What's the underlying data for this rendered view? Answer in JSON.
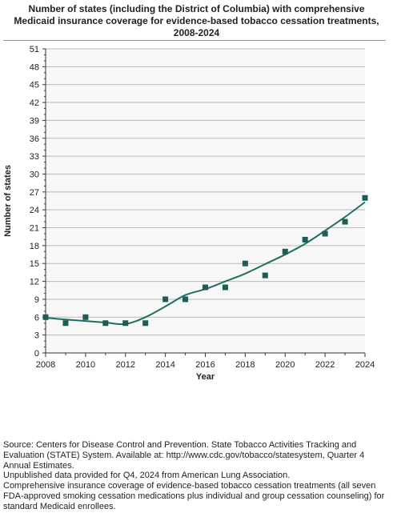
{
  "title_lines": [
    "Number of states (including the District of Columbia) with comprehensive",
    "Medicaid insurance coverage for evidence-based tobacco cessation treatments,",
    "2008-2024"
  ],
  "footnotes": [
    "Source: Centers for Disease Control and Prevention. State Tobacco Activities Tracking and Evaluation (STATE) System. Available at: http://www.cdc.gov/tobacco/statesystem, Quarter 4 Annual Estimates.",
    "Unpublished data provided for Q4, 2024 from American Lung Association.",
    "Comprehensive insurance coverage of evidence-based tobacco cessation treatments (all seven FDA-approved smoking cessation medications plus individual and group cessation counseling) for standard Medicaid enrollees."
  ],
  "colors": {
    "marker": "#1f5c55",
    "trend": "#1f6f63",
    "grid": "#b9b9b9",
    "plot_bg": "#f7f7f7"
  },
  "chart_data": {
    "type": "scatter",
    "title": "Number of states (including the District of Columbia) with comprehensive Medicaid insurance coverage for evidence-based tobacco cessation treatments, 2008-2024",
    "xlabel": "Year",
    "ylabel": "Number of states",
    "xlim": [
      2008,
      2024
    ],
    "ylim": [
      0,
      51
    ],
    "x_ticks": [
      2008,
      2010,
      2012,
      2014,
      2016,
      2018,
      2020,
      2022,
      2024
    ],
    "y_ticks": [
      0,
      3,
      6,
      9,
      12,
      15,
      18,
      21,
      24,
      27,
      30,
      33,
      36,
      39,
      42,
      45,
      48,
      51
    ],
    "grid": true,
    "legend": "none",
    "series": [
      {
        "marker": "square",
        "x": [
          2008,
          2009,
          2010,
          2011,
          2012,
          2013,
          2014,
          2015,
          2016,
          2017,
          2018,
          2019,
          2020,
          2021,
          2022,
          2023,
          2024
        ],
        "y": [
          6,
          5,
          6,
          5,
          5,
          5,
          9,
          9,
          11,
          11,
          15,
          13,
          17,
          19,
          20,
          22,
          26
        ]
      }
    ],
    "trendline": {
      "x": [
        2008,
        2009,
        2010,
        2011,
        2012,
        2013,
        2014,
        2015,
        2016,
        2017,
        2018,
        2019,
        2020,
        2021,
        2022,
        2023,
        2024
      ],
      "y": [
        5.9,
        5.6,
        5.35,
        5.1,
        4.85,
        6.0,
        7.8,
        9.7,
        10.7,
        12.0,
        13.3,
        14.9,
        16.5,
        18.3,
        20.5,
        22.8,
        25.3
      ]
    }
  }
}
